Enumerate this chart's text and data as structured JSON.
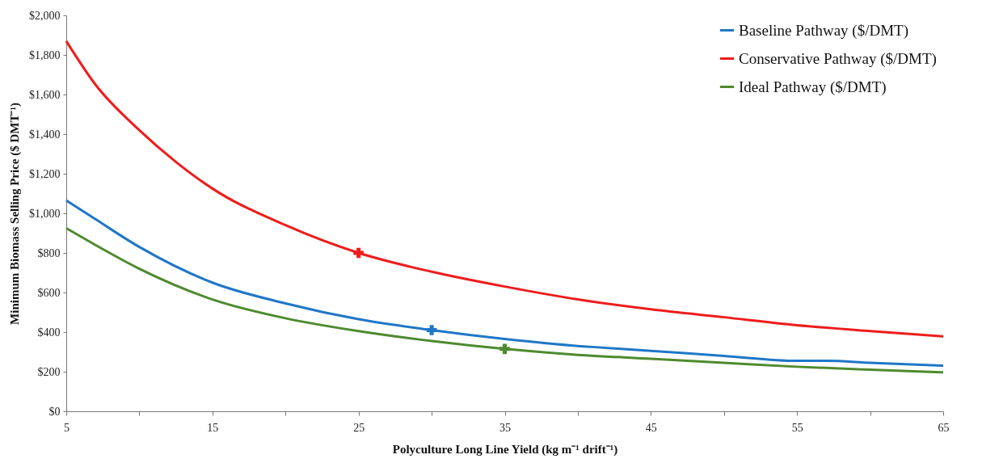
{
  "chart_data": {
    "type": "line",
    "xlabel": "Polyculture Long Line Yield (kg m⁻¹ drift⁻¹)",
    "ylabel": "Minimum Biomass Selling Price ($ DMT⁻¹)",
    "xlim": [
      5,
      65
    ],
    "xticks": [
      5,
      {
        "value": 10,
        "label": null
      },
      15,
      {
        "value": 20,
        "label": null
      },
      25,
      {
        "value": 30,
        "label": null
      },
      35,
      {
        "value": 40,
        "label": null
      },
      45,
      {
        "value": 50,
        "label": null
      },
      55,
      {
        "value": 60,
        "label": null
      },
      65
    ],
    "ylim": [
      0,
      2000
    ],
    "yticks": [
      {
        "value": 0,
        "label": "$0"
      },
      {
        "value": 200,
        "label": "$200"
      },
      {
        "value": 400,
        "label": "$400"
      },
      {
        "value": 600,
        "label": "$600"
      },
      {
        "value": 800,
        "label": "$800"
      },
      {
        "value": 1000,
        "label": "$1,000"
      },
      {
        "value": 1200,
        "label": "$1,200"
      },
      {
        "value": 1400,
        "label": "$1,400"
      },
      {
        "value": 1600,
        "label": "$1,600"
      },
      {
        "value": 1800,
        "label": "$1,800"
      },
      {
        "value": 2000,
        "label": "$2,000"
      }
    ],
    "grid": false,
    "legend": "top right",
    "marker": "none",
    "line_style": "solid",
    "series": [
      {
        "name": "Baseline Pathway ($/DMT)",
        "color": "#1f77c8",
        "x": [
          5,
          7,
          10,
          15,
          20,
          25,
          30,
          35,
          40,
          41,
          45,
          50,
          55,
          57,
          60,
          65
        ],
        "values": [
          1065,
          970,
          830,
          650,
          545,
          465,
          410,
          365,
          330,
          325,
          305,
          280,
          255,
          255,
          245,
          230
        ]
      },
      {
        "name": "Conservative Pathway ($/DMT)",
        "color": "#ee1c1c",
        "x": [
          5,
          7,
          10,
          12.5,
          15,
          20,
          25,
          30,
          35,
          40,
          45,
          50,
          55,
          60,
          65
        ],
        "values": [
          1870,
          1650,
          1420,
          1260,
          1125,
          940,
          800,
          705,
          630,
          565,
          515,
          475,
          435,
          405,
          378
        ]
      },
      {
        "name": "Ideal Pathway ($/DMT)",
        "color": "#4e8a2e",
        "x": [
          5,
          7,
          10,
          15,
          20,
          25,
          30,
          35,
          40,
          45,
          50,
          55,
          60,
          65
        ],
        "values": [
          925,
          840,
          720,
          565,
          470,
          405,
          355,
          315,
          285,
          265,
          245,
          225,
          210,
          197
        ]
      },
      {
        "type": "scatter",
        "marker": "cross",
        "color": "#ee1c1c",
        "x": [
          25
        ],
        "values": [
          800
        ]
      },
      {
        "type": "scatter",
        "marker": "cross",
        "color": "#1f77c8",
        "x": [
          30
        ],
        "values": [
          410
        ]
      },
      {
        "type": "scatter",
        "marker": "cross",
        "color": "#4e8a2e",
        "x": [
          35
        ],
        "values": [
          315
        ]
      }
    ]
  }
}
